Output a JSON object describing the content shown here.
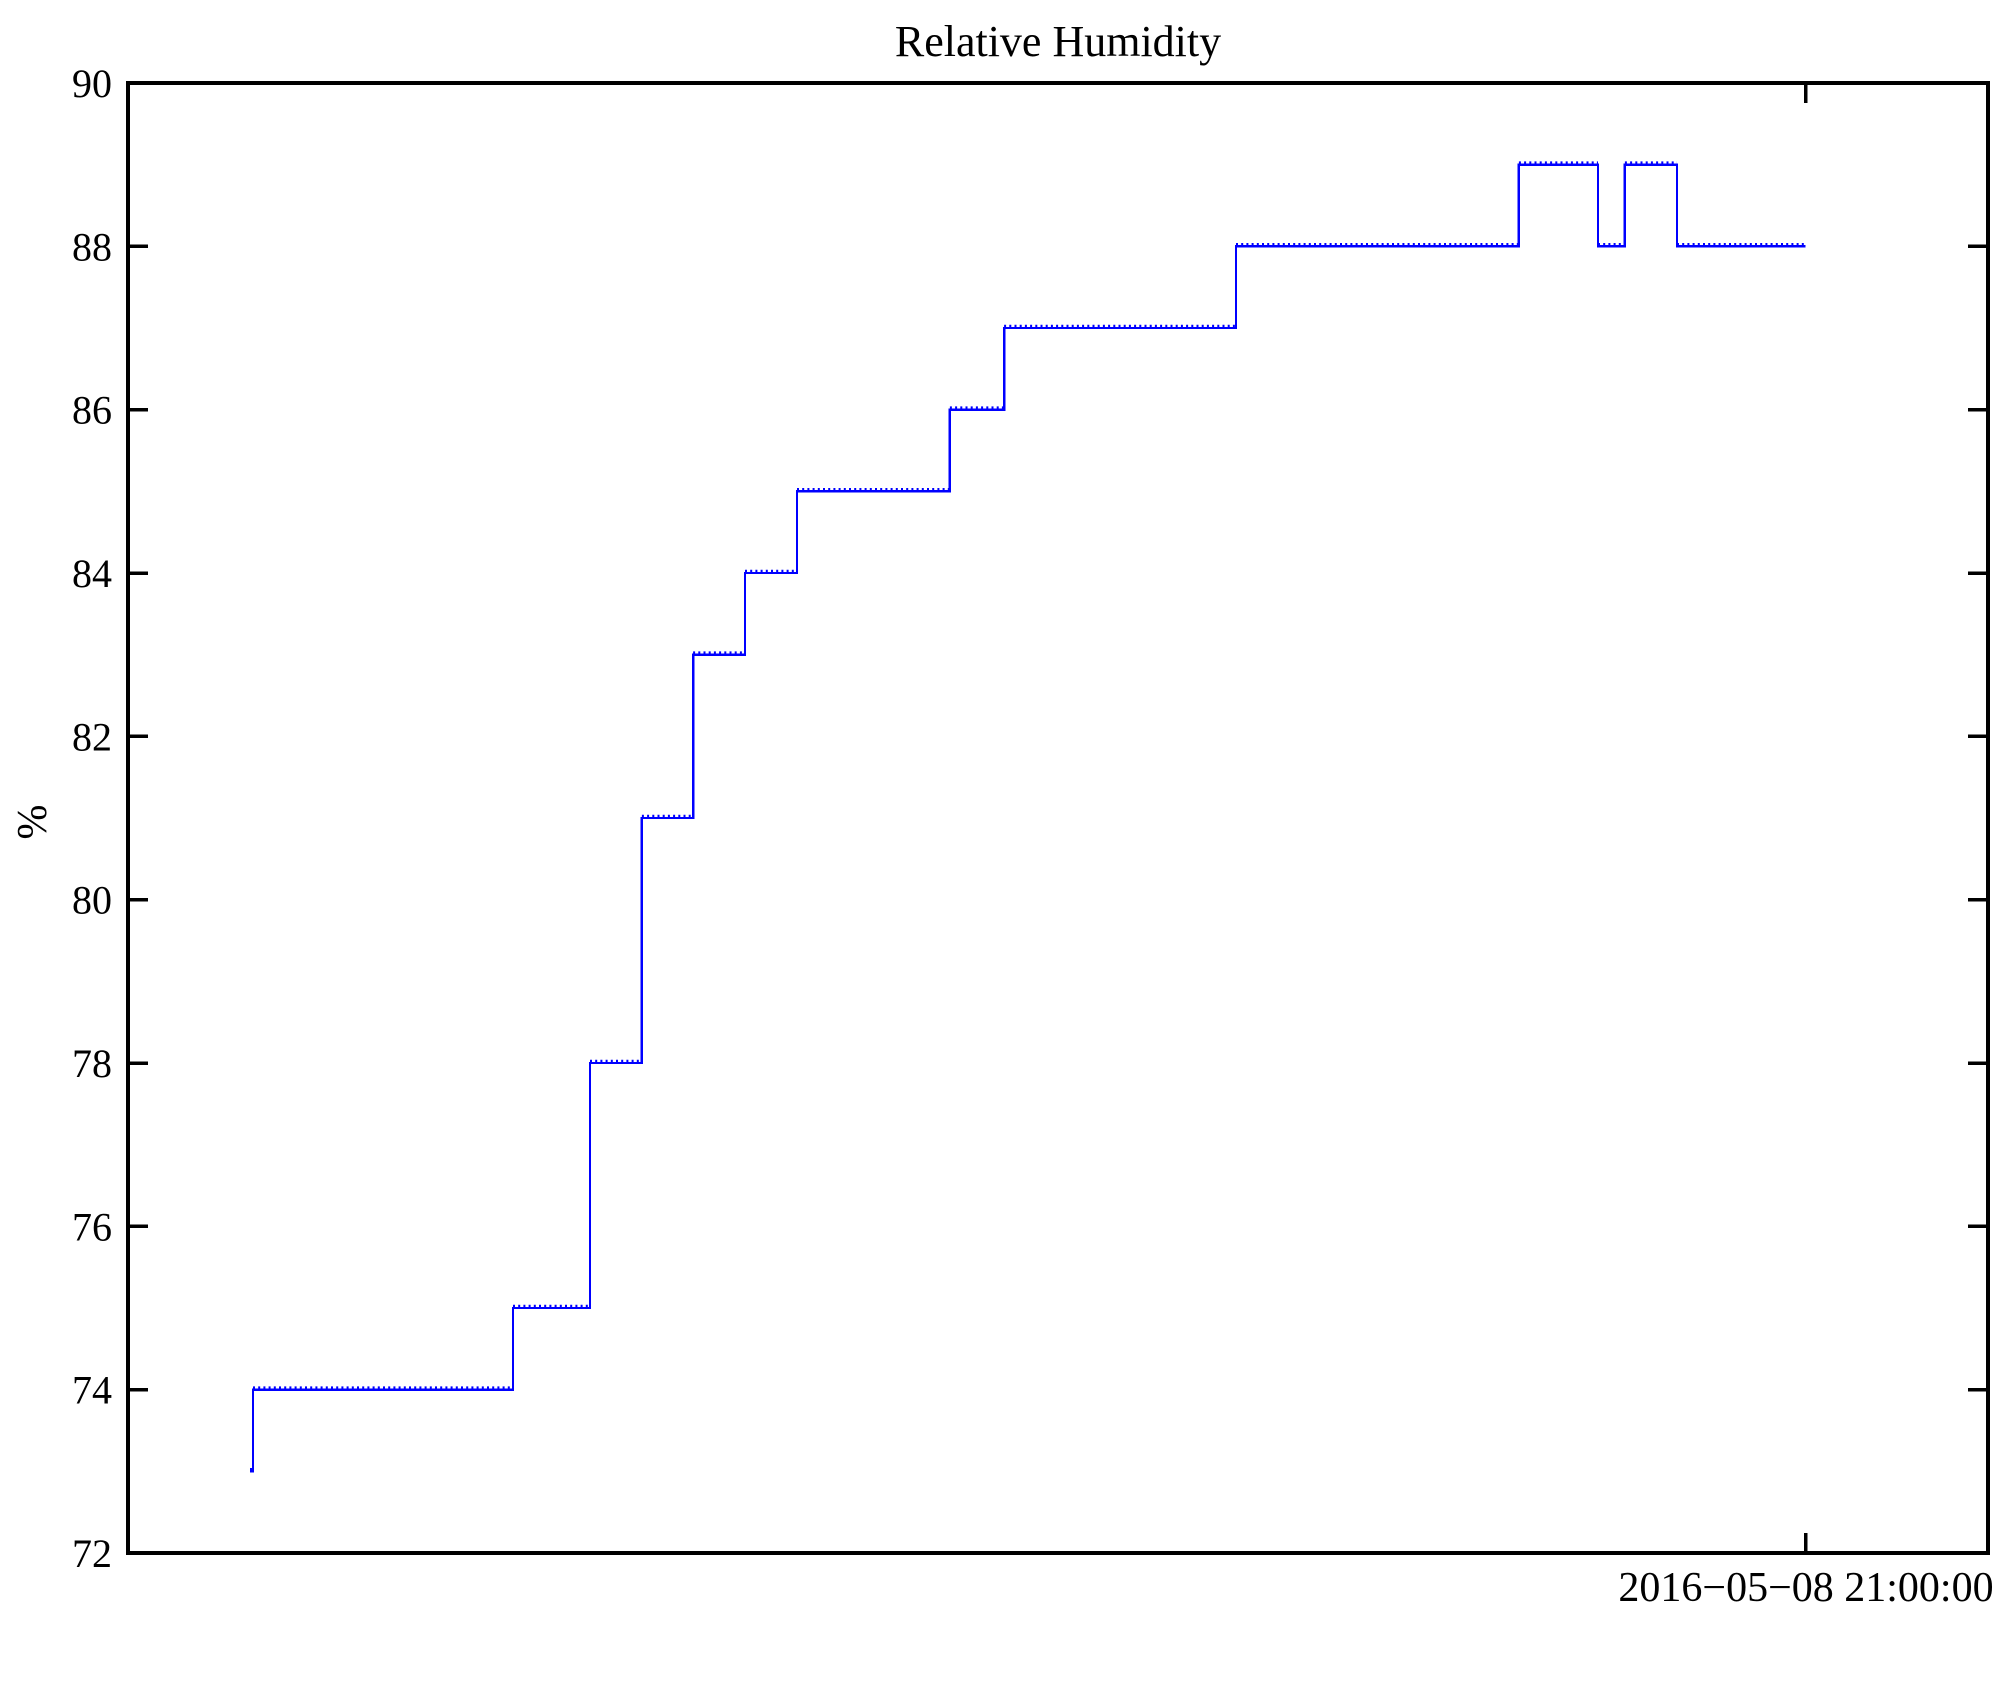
{
  "figure": {
    "background_color": "#ffffff",
    "frame_color": "#000000",
    "text_color": "#000000"
  },
  "chart_data": {
    "type": "line",
    "subtype": "step-post",
    "title": "Relative Humidity",
    "xlabel": "",
    "ylabel": "%",
    "ylim": [
      72,
      90
    ],
    "yticks": [
      72,
      74,
      76,
      78,
      80,
      82,
      84,
      86,
      88,
      90
    ],
    "grid": false,
    "legend": null,
    "x_axis": {
      "tick_label": "2016−05−08 21:00:00",
      "tick_x_frac": 0.902
    },
    "series": [
      {
        "name": "relative-humidity",
        "color": "#0000ff",
        "marker": "dot",
        "unit": "%",
        "levels_x_frac": [
          [
            0.0656,
            0.0672,
            73
          ],
          [
            0.0672,
            0.207,
            74
          ],
          [
            0.207,
            0.2484,
            75
          ],
          [
            0.2484,
            0.2763,
            78
          ],
          [
            0.2763,
            0.3038,
            81
          ],
          [
            0.3038,
            0.3317,
            83
          ],
          [
            0.3317,
            0.3597,
            84
          ],
          [
            0.3597,
            0.4419,
            85
          ],
          [
            0.4419,
            0.471,
            86
          ],
          [
            0.471,
            0.5957,
            87
          ],
          [
            0.5957,
            0.7478,
            88
          ],
          [
            0.7478,
            0.7903,
            89
          ],
          [
            0.7903,
            0.8048,
            88
          ],
          [
            0.8048,
            0.8328,
            89
          ],
          [
            0.8328,
            0.902,
            88
          ]
        ]
      }
    ]
  }
}
